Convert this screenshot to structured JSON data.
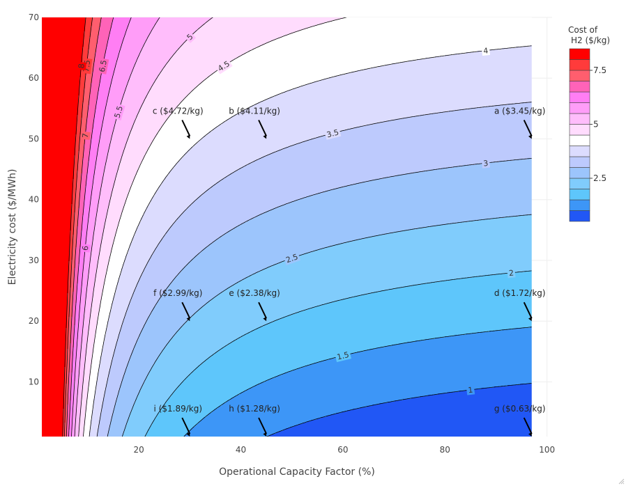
{
  "chart_data": {
    "type": "contour",
    "xlabel": "Operational Capacity Factor (%)",
    "ylabel": "Electricity cost ($/MWh)",
    "xlim": [
      1,
      101
    ],
    "ylim": [
      1,
      70
    ],
    "x_ticks": [
      20,
      40,
      60,
      80,
      100
    ],
    "y_ticks": [
      10,
      20,
      30,
      40,
      50,
      60,
      70
    ],
    "data_x_range": [
      1,
      97
    ],
    "colorbar": {
      "title_line1": "Cost of",
      "title_line2": "H2 ($/kg)",
      "ticks": [
        {
          "value": 7.5,
          "label": "7.5"
        },
        {
          "value": 5,
          "label": "5"
        },
        {
          "value": 2.5,
          "label": "2.5"
        }
      ],
      "range": [
        0.5,
        8.5
      ]
    },
    "contour_levels": [
      1,
      1.5,
      2,
      2.5,
      3,
      3.5,
      4,
      4.5,
      5,
      5.5,
      6,
      6.5,
      7,
      7.5,
      8
    ],
    "contour_labels": [
      {
        "level": 1,
        "text": "1"
      },
      {
        "level": 1.5,
        "text": "1.5"
      },
      {
        "level": 2,
        "text": "2"
      },
      {
        "level": 2.5,
        "text": "2.5"
      },
      {
        "level": 3,
        "text": "3"
      },
      {
        "level": 3.5,
        "text": "3.5"
      },
      {
        "level": 4,
        "text": "4"
      },
      {
        "level": 4.5,
        "text": "4.5"
      },
      {
        "level": 5,
        "text": "5"
      },
      {
        "level": 5.5,
        "text": "5.5"
      },
      {
        "level": 6,
        "text": "6"
      },
      {
        "level": 6.5,
        "text": "6.5"
      },
      {
        "level": 7,
        "text": "7"
      },
      {
        "level": 7.5,
        "text": "7.5"
      },
      {
        "level": 8,
        "text": "8"
      }
    ],
    "band_colors": [
      {
        "min": -99,
        "color": "#0a0af0"
      },
      {
        "min": 0.5,
        "color": "#2157f5"
      },
      {
        "min": 1.0,
        "color": "#3d96f7"
      },
      {
        "min": 1.5,
        "color": "#5ec6fb"
      },
      {
        "min": 2.0,
        "color": "#80ccfc"
      },
      {
        "min": 2.5,
        "color": "#9cc5fc"
      },
      {
        "min": 3.0,
        "color": "#bdcafd"
      },
      {
        "min": 3.5,
        "color": "#dcdcfe"
      },
      {
        "min": 4.0,
        "color": "#ffffff"
      },
      {
        "min": 4.5,
        "color": "#ffdcfd"
      },
      {
        "min": 5.0,
        "color": "#ffbdfb"
      },
      {
        "min": 5.5,
        "color": "#ff9df8"
      },
      {
        "min": 6.0,
        "color": "#ff7ef4"
      },
      {
        "min": 6.5,
        "color": "#ff63b8"
      },
      {
        "min": 7.0,
        "color": "#ff5e6e"
      },
      {
        "min": 7.5,
        "color": "#ff3b3b"
      },
      {
        "min": 8.0,
        "color": "#ff0000"
      }
    ],
    "annotations": [
      {
        "id": "a",
        "text": "a ($3.45/kg)",
        "x": 97,
        "y": 50
      },
      {
        "id": "b",
        "text": "b ($4.11/kg)",
        "x": 45,
        "y": 50
      },
      {
        "id": "c",
        "text": "c ($4.72/kg)",
        "x": 30,
        "y": 50
      },
      {
        "id": "d",
        "text": "d ($1.72/kg)",
        "x": 97,
        "y": 20
      },
      {
        "id": "e",
        "text": "e ($2.38/kg)",
        "x": 45,
        "y": 20
      },
      {
        "id": "f",
        "text": "f ($2.99/kg)",
        "x": 30,
        "y": 20
      },
      {
        "id": "g",
        "text": "g ($0.63/kg)",
        "x": 97,
        "y": 1
      },
      {
        "id": "h",
        "text": "h ($1.28/kg)",
        "x": 45,
        "y": 1
      },
      {
        "id": "i",
        "text": "i ($1.89/kg)",
        "x": 30,
        "y": 1
      }
    ]
  }
}
